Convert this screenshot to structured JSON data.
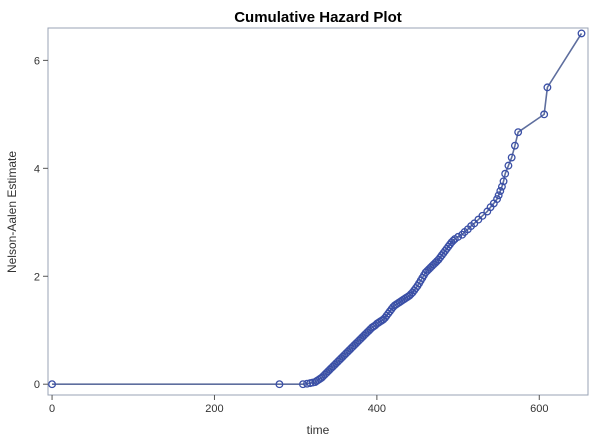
{
  "chart_data": {
    "type": "line",
    "title": "Cumulative Hazard Plot",
    "xlabel": "time",
    "ylabel": "Nelson-Aalen Estimate",
    "xlim": [
      -5,
      660
    ],
    "ylim": [
      -0.2,
      6.6
    ],
    "xticks": [
      0,
      200,
      400,
      600
    ],
    "yticks": [
      0,
      2,
      4,
      6
    ],
    "grid": false,
    "legend": "none",
    "colors": {
      "line": "#5e6e9e",
      "marker": "#3a4fa6",
      "frame": "#9aa3b5"
    },
    "series": [
      {
        "x": [
          0,
          280,
          309,
          314,
          318,
          321,
          324,
          326,
          328,
          330,
          332,
          334,
          336,
          338,
          340,
          342,
          344,
          346,
          348,
          350,
          352,
          354,
          356,
          358,
          360,
          362,
          364,
          366,
          368,
          370,
          372,
          374,
          376,
          378,
          380,
          382,
          384,
          386,
          388,
          390,
          392,
          394,
          396,
          398,
          400,
          402,
          404,
          406,
          408,
          410,
          412,
          414,
          416,
          418,
          420,
          422,
          424,
          426,
          428,
          430,
          432,
          434,
          436,
          438,
          440,
          442,
          444,
          446,
          448,
          450,
          452,
          454,
          456,
          458,
          460,
          462,
          464,
          466,
          468,
          470,
          472,
          474,
          476,
          478,
          480,
          482,
          484,
          486,
          488,
          490,
          492,
          494,
          496,
          500,
          505,
          508,
          512,
          516,
          520,
          525,
          530,
          536,
          540,
          544,
          548,
          550,
          552,
          554,
          556,
          558,
          562,
          566,
          570,
          574,
          606,
          610,
          652
        ],
        "y": [
          0,
          0,
          0,
          0.01,
          0.02,
          0.03,
          0.04,
          0.06,
          0.08,
          0.1,
          0.12,
          0.15,
          0.18,
          0.21,
          0.24,
          0.27,
          0.3,
          0.33,
          0.36,
          0.39,
          0.42,
          0.45,
          0.48,
          0.51,
          0.54,
          0.57,
          0.6,
          0.63,
          0.66,
          0.69,
          0.72,
          0.75,
          0.78,
          0.81,
          0.84,
          0.87,
          0.9,
          0.93,
          0.96,
          0.99,
          1.02,
          1.05,
          1.07,
          1.09,
          1.12,
          1.14,
          1.16,
          1.18,
          1.2,
          1.23,
          1.27,
          1.31,
          1.35,
          1.39,
          1.43,
          1.46,
          1.48,
          1.5,
          1.52,
          1.54,
          1.56,
          1.58,
          1.6,
          1.62,
          1.64,
          1.67,
          1.7,
          1.74,
          1.78,
          1.82,
          1.87,
          1.92,
          1.97,
          2.02,
          2.07,
          2.1,
          2.13,
          2.16,
          2.19,
          2.22,
          2.25,
          2.28,
          2.31,
          2.35,
          2.39,
          2.43,
          2.47,
          2.51,
          2.55,
          2.59,
          2.63,
          2.66,
          2.69,
          2.73,
          2.77,
          2.82,
          2.87,
          2.93,
          2.98,
          3.05,
          3.12,
          3.2,
          3.28,
          3.35,
          3.43,
          3.5,
          3.58,
          3.66,
          3.76,
          3.9,
          4.05,
          4.2,
          4.42,
          4.67,
          5.0,
          5.5,
          6.5
        ]
      }
    ]
  }
}
